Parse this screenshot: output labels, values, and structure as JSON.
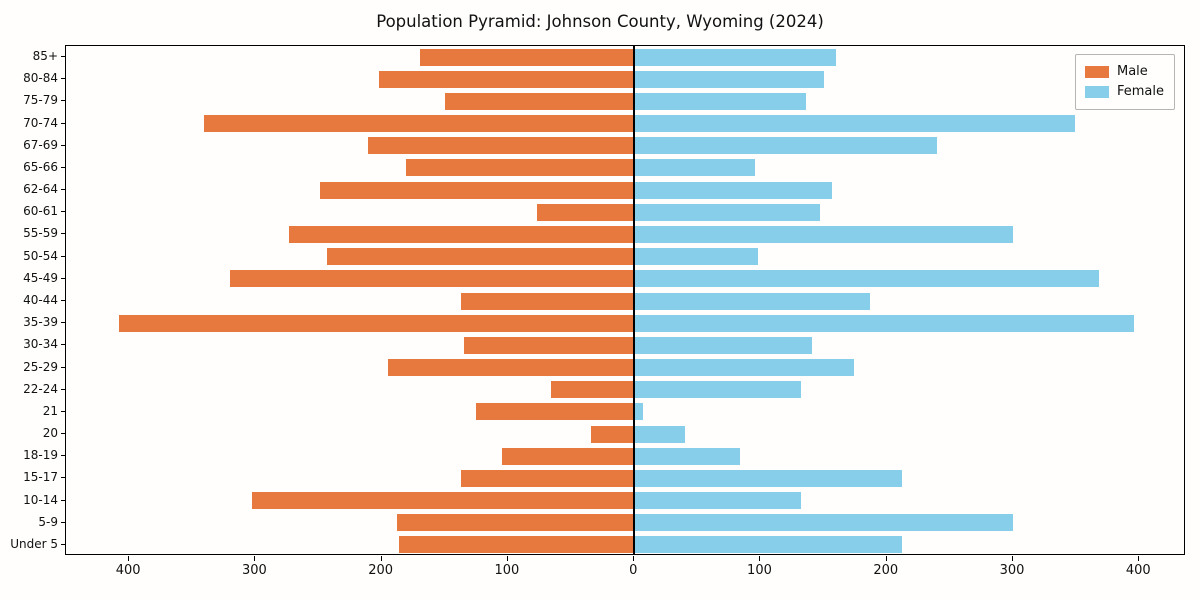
{
  "chart_data": {
    "type": "bar",
    "variant": "population-pyramid",
    "title": "Population Pyramid: Johnson County, Wyoming (2024)",
    "categories_top_to_bottom": [
      "85+",
      "80-84",
      "75-79",
      "70-74",
      "67-69",
      "65-66",
      "62-64",
      "60-61",
      "55-59",
      "50-54",
      "45-49",
      "40-44",
      "35-39",
      "30-34",
      "25-29",
      "22-24",
      "21",
      "20",
      "18-19",
      "15-17",
      "10-14",
      "5-9",
      "Under 5"
    ],
    "series": [
      {
        "name": "Male",
        "side": "left",
        "color": "#e8793e",
        "values": [
          170,
          202,
          150,
          341,
          211,
          181,
          249,
          77,
          273,
          243,
          320,
          137,
          408,
          135,
          195,
          66,
          125,
          34,
          105,
          137,
          303,
          188,
          186
        ]
      },
      {
        "name": "Female",
        "side": "right",
        "color": "#87ceeb",
        "values": [
          160,
          150,
          136,
          349,
          240,
          96,
          157,
          147,
          300,
          98,
          368,
          187,
          396,
          141,
          174,
          132,
          7,
          40,
          84,
          212,
          132,
          300,
          212
        ]
      }
    ],
    "xlim": [
      -450,
      437
    ],
    "xticks": [
      -400,
      -300,
      -200,
      -100,
      0,
      100,
      200,
      300,
      400
    ],
    "xtick_labels_absolute": true,
    "legend_position": "upper right",
    "grid": false,
    "zero_axis_line": true
  }
}
